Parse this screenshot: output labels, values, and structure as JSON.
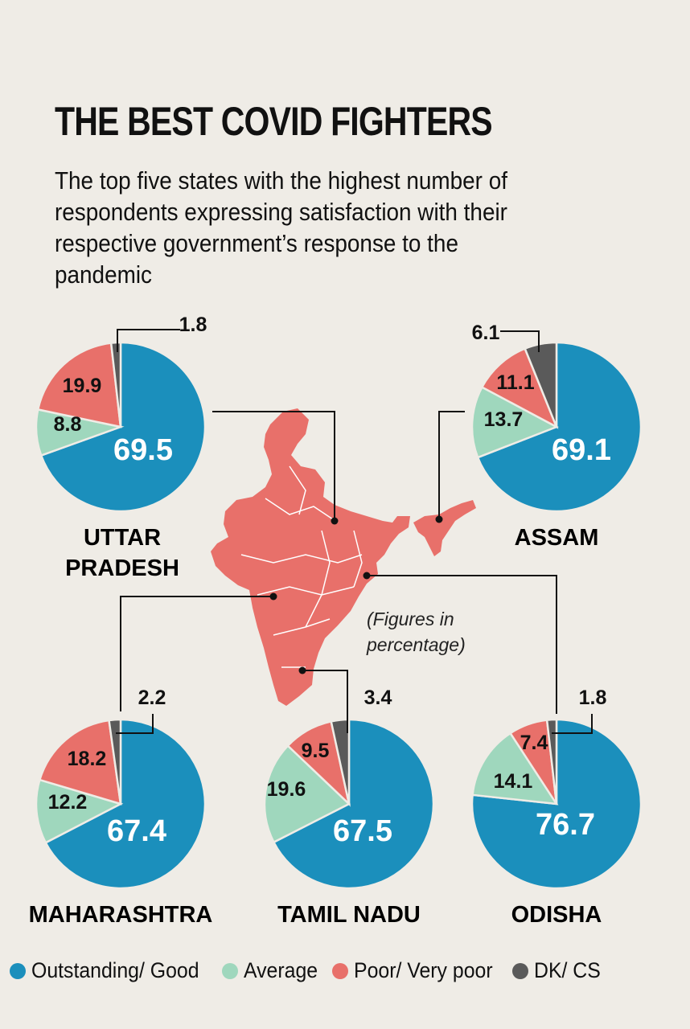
{
  "title": "THE BEST COVID FIGHTERS",
  "subtitle": "The top five states with the highest number of respondents expressing satisfaction with their respective government’s response to the pandemic",
  "note_line1": "(Figures in",
  "note_line2": "percentage)",
  "colors": {
    "outstanding_good": "#1b8fbc",
    "average": "#9fd7bd",
    "poor_very_poor": "#e8706a",
    "dk_cs": "#5a5a5a",
    "map": "#e8706a",
    "background": "#efece6"
  },
  "legend": [
    {
      "label": "Outstanding/ Good",
      "color": "#1b8fbc"
    },
    {
      "label": "Average",
      "color": "#9fd7bd"
    },
    {
      "label": "Poor/ Very poor",
      "color": "#e8706a"
    },
    {
      "label": "DK/ CS",
      "color": "#5a5a5a"
    }
  ],
  "chart_data": [
    {
      "type": "pie",
      "state_lines": [
        "UTTAR",
        "PRADESH"
      ],
      "slices": [
        {
          "category": "Outstanding/ Good",
          "value": 69.5
        },
        {
          "category": "Average",
          "value": 8.8
        },
        {
          "category": "Poor/ Very poor",
          "value": 19.9
        },
        {
          "category": "DK/ CS",
          "value": 1.8
        }
      ]
    },
    {
      "type": "pie",
      "state_lines": [
        "ASSAM"
      ],
      "slices": [
        {
          "category": "Outstanding/ Good",
          "value": 69.1
        },
        {
          "category": "Average",
          "value": 13.7
        },
        {
          "category": "Poor/ Very poor",
          "value": 11.1
        },
        {
          "category": "DK/ CS",
          "value": 6.1
        }
      ]
    },
    {
      "type": "pie",
      "state_lines": [
        "MAHARASHTRA"
      ],
      "slices": [
        {
          "category": "Outstanding/ Good",
          "value": 67.4
        },
        {
          "category": "Average",
          "value": 12.2
        },
        {
          "category": "Poor/ Very poor",
          "value": 18.2
        },
        {
          "category": "DK/ CS",
          "value": 2.2
        }
      ]
    },
    {
      "type": "pie",
      "state_lines": [
        "TAMIL NADU"
      ],
      "slices": [
        {
          "category": "Outstanding/ Good",
          "value": 67.5
        },
        {
          "category": "Average",
          "value": 19.6
        },
        {
          "category": "Poor/ Very poor",
          "value": 9.5
        },
        {
          "category": "DK/ CS",
          "value": 3.4
        }
      ]
    },
    {
      "type": "pie",
      "state_lines": [
        "ODISHA"
      ],
      "slices": [
        {
          "category": "Outstanding/ Good",
          "value": 76.7
        },
        {
          "category": "Average",
          "value": 14.1
        },
        {
          "category": "Poor/ Very poor",
          "value": 7.4
        },
        {
          "category": "DK/ CS",
          "value": 1.8
        }
      ]
    }
  ]
}
